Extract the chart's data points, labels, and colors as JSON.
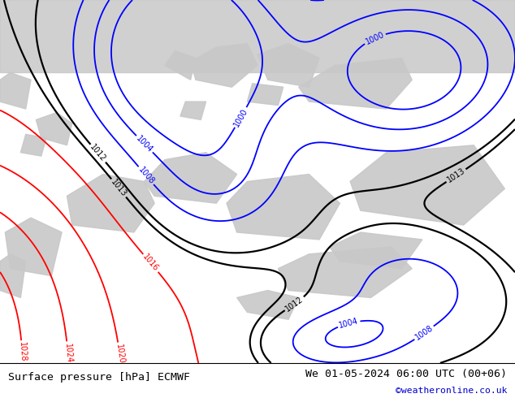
{
  "title_left": "Surface pressure [hPa] ECMWF",
  "title_right": "We 01-05-2024 06:00 UTC (00+06)",
  "credit": "©weatheronline.co.uk",
  "fig_width": 6.34,
  "fig_height": 4.9,
  "dpi": 100,
  "map_bg_green": "#b8e6a0",
  "map_bg_gray": "#c8c8c8",
  "map_bg_white": "#e8e8e8",
  "bottom_bar_color": "#ffffff",
  "title_fontsize": 9.5,
  "credit_color": "#0000cc",
  "red_levels": [
    1016,
    1020,
    1024,
    1028
  ],
  "blue_levels": [
    1000,
    1004,
    1008
  ],
  "black_levels": [
    1012,
    1013
  ],
  "line_width": 1.3,
  "label_fontsize": 7
}
